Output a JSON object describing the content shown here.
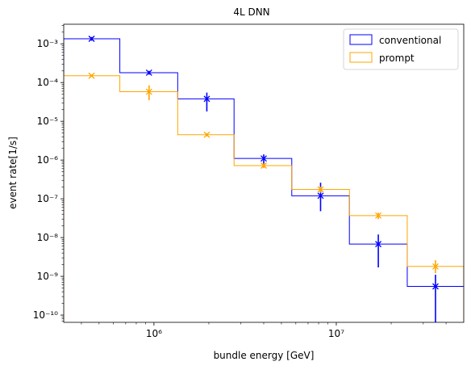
{
  "chart_data": {
    "type": "step",
    "title": "4L DNN",
    "xlabel": "bundle energy [GeV]",
    "ylabel": "event rate[1/s]",
    "xscale": "log",
    "yscale": "log",
    "xlim": [
      320000,
      50000000
    ],
    "ylim": [
      6.5e-11,
      0.0032
    ],
    "x_ticks": [
      {
        "value": 1000000,
        "label": "10⁶"
      },
      {
        "value": 10000000,
        "label": "10⁷"
      }
    ],
    "y_ticks": [
      {
        "value": 1e-10,
        "label": "10⁻¹⁰"
      },
      {
        "value": 1e-09,
        "label": "10⁻⁹"
      },
      {
        "value": 1e-08,
        "label": "10⁻⁸"
      },
      {
        "value": 1e-07,
        "label": "10⁻⁷"
      },
      {
        "value": 1e-06,
        "label": "10⁻⁶"
      },
      {
        "value": 1e-05,
        "label": "10⁻⁵"
      },
      {
        "value": 0.0001,
        "label": "10⁻⁴"
      },
      {
        "value": 0.001,
        "label": "10⁻³"
      }
    ],
    "bin_edges": [
      320000,
      650000,
      1350000,
      2750000,
      5700000,
      11800000,
      24500000,
      50000000
    ],
    "bin_centers": [
      455000,
      940000,
      1950000,
      4000000,
      8200000,
      17000000,
      35000000
    ],
    "series": [
      {
        "name": "conventional",
        "color": "#0000ff",
        "values": [
          0.00135,
          0.00018,
          3.8e-05,
          1.1e-06,
          1.2e-07,
          6.8e-09,
          5.5e-10
        ],
        "err_low": [
          0.0012,
          0.00016,
          1.8e-05,
          7.5e-07,
          4.8e-08,
          1.7e-09,
          4e-11
        ],
        "err_high": [
          0.0015,
          0.0002,
          5.5e-05,
          1.4e-06,
          2.6e-07,
          1.2e-08,
          1.1e-09
        ]
      },
      {
        "name": "prompt",
        "color": "#ffa500",
        "values": [
          0.00015,
          5.8e-05,
          4.5e-06,
          7.2e-07,
          1.75e-07,
          3.7e-08,
          1.8e-09
        ],
        "err_low": [
          0.00014,
          3.5e-05,
          4.1e-06,
          6.2e-07,
          1.45e-07,
          3e-08,
          1.2e-09
        ],
        "err_high": [
          0.00016,
          8.5e-05,
          4.9e-06,
          8.2e-07,
          2.05e-07,
          4.4e-08,
          2.6e-09
        ]
      }
    ],
    "legend": {
      "position": "top-right"
    },
    "grid": false
  }
}
